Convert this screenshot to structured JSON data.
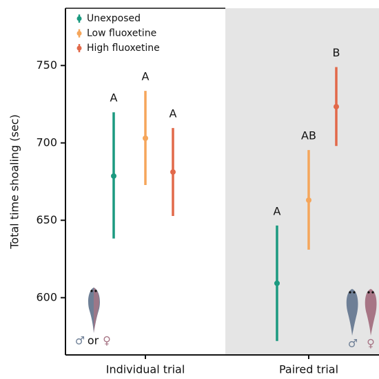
{
  "chart_data": {
    "type": "errorbar",
    "y_label": "Total time shoaling (sec)",
    "categories": [
      "Individual trial",
      "Paired trial"
    ],
    "series": [
      {
        "name": "Unexposed",
        "color": "#1b9a80",
        "values": [
          678.6,
          609.3
        ],
        "lower": [
          638.2,
          572
        ],
        "upper": [
          719.8,
          646.6
        ],
        "labels": [
          "A",
          "A"
        ]
      },
      {
        "name": "Low fluoxetine",
        "color": "#f5a65b",
        "values": [
          703,
          663
        ],
        "lower": [
          672.8,
          631
        ],
        "upper": [
          733.6,
          695.4
        ],
        "labels": [
          "A",
          "AB"
        ]
      },
      {
        "name": "High fluoxetine",
        "color": "#e2694a",
        "values": [
          681.2,
          723.4
        ],
        "lower": [
          652.8,
          698
        ],
        "upper": [
          709.6,
          749
        ],
        "labels": [
          "A",
          "B"
        ]
      }
    ],
    "ylim": [
      563,
      787
    ],
    "yticks": [
      600,
      650,
      700,
      750
    ],
    "annotations": {
      "individual_sex": [
        "♂",
        "or",
        "♀"
      ],
      "paired_sex": [
        "♂",
        "♀"
      ]
    }
  }
}
